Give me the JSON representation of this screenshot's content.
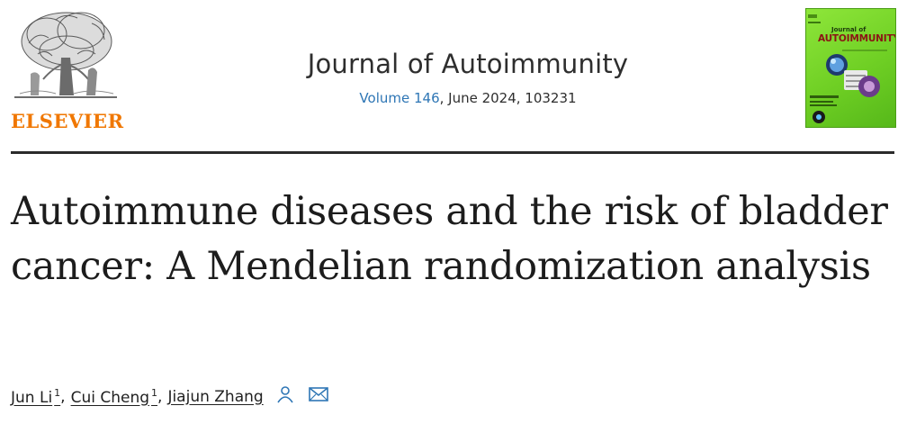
{
  "publisher": {
    "name": "ELSEVIER",
    "logo_icon": "elsevier-tree-icon"
  },
  "journal": {
    "title": "Journal of Autoimmunity",
    "volume_link": "Volume 146",
    "issue_rest": ", June 2024, 103231"
  },
  "cover": {
    "small_text": "Journal of",
    "big_text": "AUTOIMMUNITY",
    "background_color": "#7ad82c"
  },
  "article": {
    "title": "Autoimmune diseases and the risk of bladder cancer: A Mendelian randomization analysis"
  },
  "authors": [
    {
      "name": "Jun Li",
      "sup": "1"
    },
    {
      "name": "Cui Cheng",
      "sup": "1"
    },
    {
      "name": "Jiajun Zhang",
      "sup": ""
    }
  ],
  "author_icons": [
    "person-icon",
    "envelope-icon"
  ],
  "colors": {
    "publisher_orange": "#f07700",
    "link_blue": "#2e76b5"
  }
}
